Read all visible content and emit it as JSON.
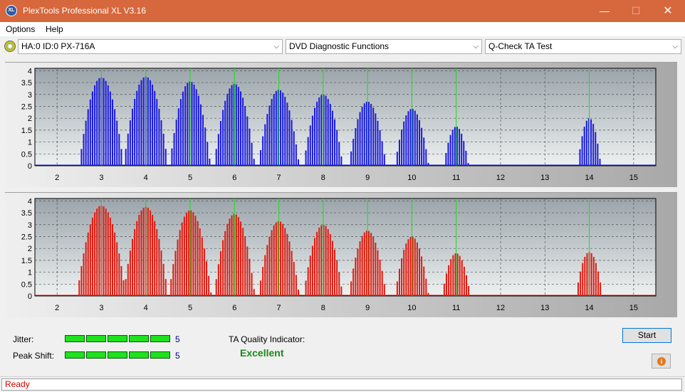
{
  "window": {
    "title": "PlexTools Professional XL V3.16",
    "icon_text": "XL",
    "minimize_glyph": "—",
    "maximize_glyph": "☐",
    "close_glyph": "✕"
  },
  "menu": {
    "items": [
      "Options",
      "Help"
    ]
  },
  "toolbar": {
    "drive": "HA:0 ID:0  PX-716A",
    "function": "DVD Diagnostic Functions",
    "test": "Q-Check TA Test"
  },
  "charts": {
    "x_ticks": [
      "2",
      "3",
      "4",
      "5",
      "6",
      "7",
      "8",
      "9",
      "10",
      "11",
      "12",
      "13",
      "14",
      "15"
    ],
    "y_ticks": [
      "0",
      "0.5",
      "1",
      "1.5",
      "2",
      "2.5",
      "3",
      "3.5",
      "4"
    ],
    "xlim": [
      1.5,
      15.5
    ],
    "ylim": [
      0,
      4.1
    ],
    "marker_lines": [
      3,
      4,
      5,
      6,
      7,
      8,
      9,
      10,
      11,
      14
    ],
    "colors": {
      "upper": "#1a1ae0",
      "lower": "#e01a10",
      "marker": "#22dd22",
      "grid": "#555555",
      "plot_top": "#9aa4aa",
      "plot_bottom": "#eef1f1"
    }
  },
  "chart_data": [
    {
      "type": "bar",
      "name": "upper",
      "xlabel": "",
      "ylabel": "",
      "xlim": [
        1.5,
        15.5
      ],
      "ylim": [
        0,
        4.1
      ],
      "peaks": [
        {
          "x": 3,
          "height": 3.72,
          "halfwidth": 0.5
        },
        {
          "x": 4,
          "height": 3.75,
          "halfwidth": 0.5
        },
        {
          "x": 5,
          "height": 3.55,
          "halfwidth": 0.46
        },
        {
          "x": 6,
          "height": 3.45,
          "halfwidth": 0.46
        },
        {
          "x": 7,
          "height": 3.2,
          "halfwidth": 0.46
        },
        {
          "x": 8,
          "height": 3.0,
          "halfwidth": 0.44
        },
        {
          "x": 9,
          "height": 2.7,
          "halfwidth": 0.42
        },
        {
          "x": 10,
          "height": 2.4,
          "halfwidth": 0.38
        },
        {
          "x": 11,
          "height": 1.65,
          "halfwidth": 0.28
        },
        {
          "x": 14,
          "height": 2.0,
          "halfwidth": 0.26
        }
      ]
    },
    {
      "type": "bar",
      "name": "lower",
      "xlabel": "",
      "ylabel": "",
      "xlim": [
        1.5,
        15.5
      ],
      "ylim": [
        0,
        4.1
      ],
      "peaks": [
        {
          "x": 3,
          "height": 3.8,
          "halfwidth": 0.55
        },
        {
          "x": 4,
          "height": 3.75,
          "halfwidth": 0.5
        },
        {
          "x": 5,
          "height": 3.6,
          "halfwidth": 0.48
        },
        {
          "x": 6,
          "height": 3.45,
          "halfwidth": 0.46
        },
        {
          "x": 7,
          "height": 3.15,
          "halfwidth": 0.46
        },
        {
          "x": 8,
          "height": 3.0,
          "halfwidth": 0.44
        },
        {
          "x": 9,
          "height": 2.75,
          "halfwidth": 0.42
        },
        {
          "x": 10,
          "height": 2.5,
          "halfwidth": 0.38
        },
        {
          "x": 11,
          "height": 1.8,
          "halfwidth": 0.32
        },
        {
          "x": 14,
          "height": 1.85,
          "halfwidth": 0.3
        }
      ]
    }
  ],
  "metrics": {
    "jitter_label": "Jitter:",
    "jitter_value": "5",
    "jitter_level": 5,
    "peak_shift_label": "Peak Shift:",
    "peak_shift_value": "5",
    "peak_shift_level": 5,
    "ta_label": "TA Quality Indicator:",
    "ta_value": "Excellent"
  },
  "buttons": {
    "start": "Start",
    "info_glyph": "i"
  },
  "status": {
    "text": "Ready"
  }
}
